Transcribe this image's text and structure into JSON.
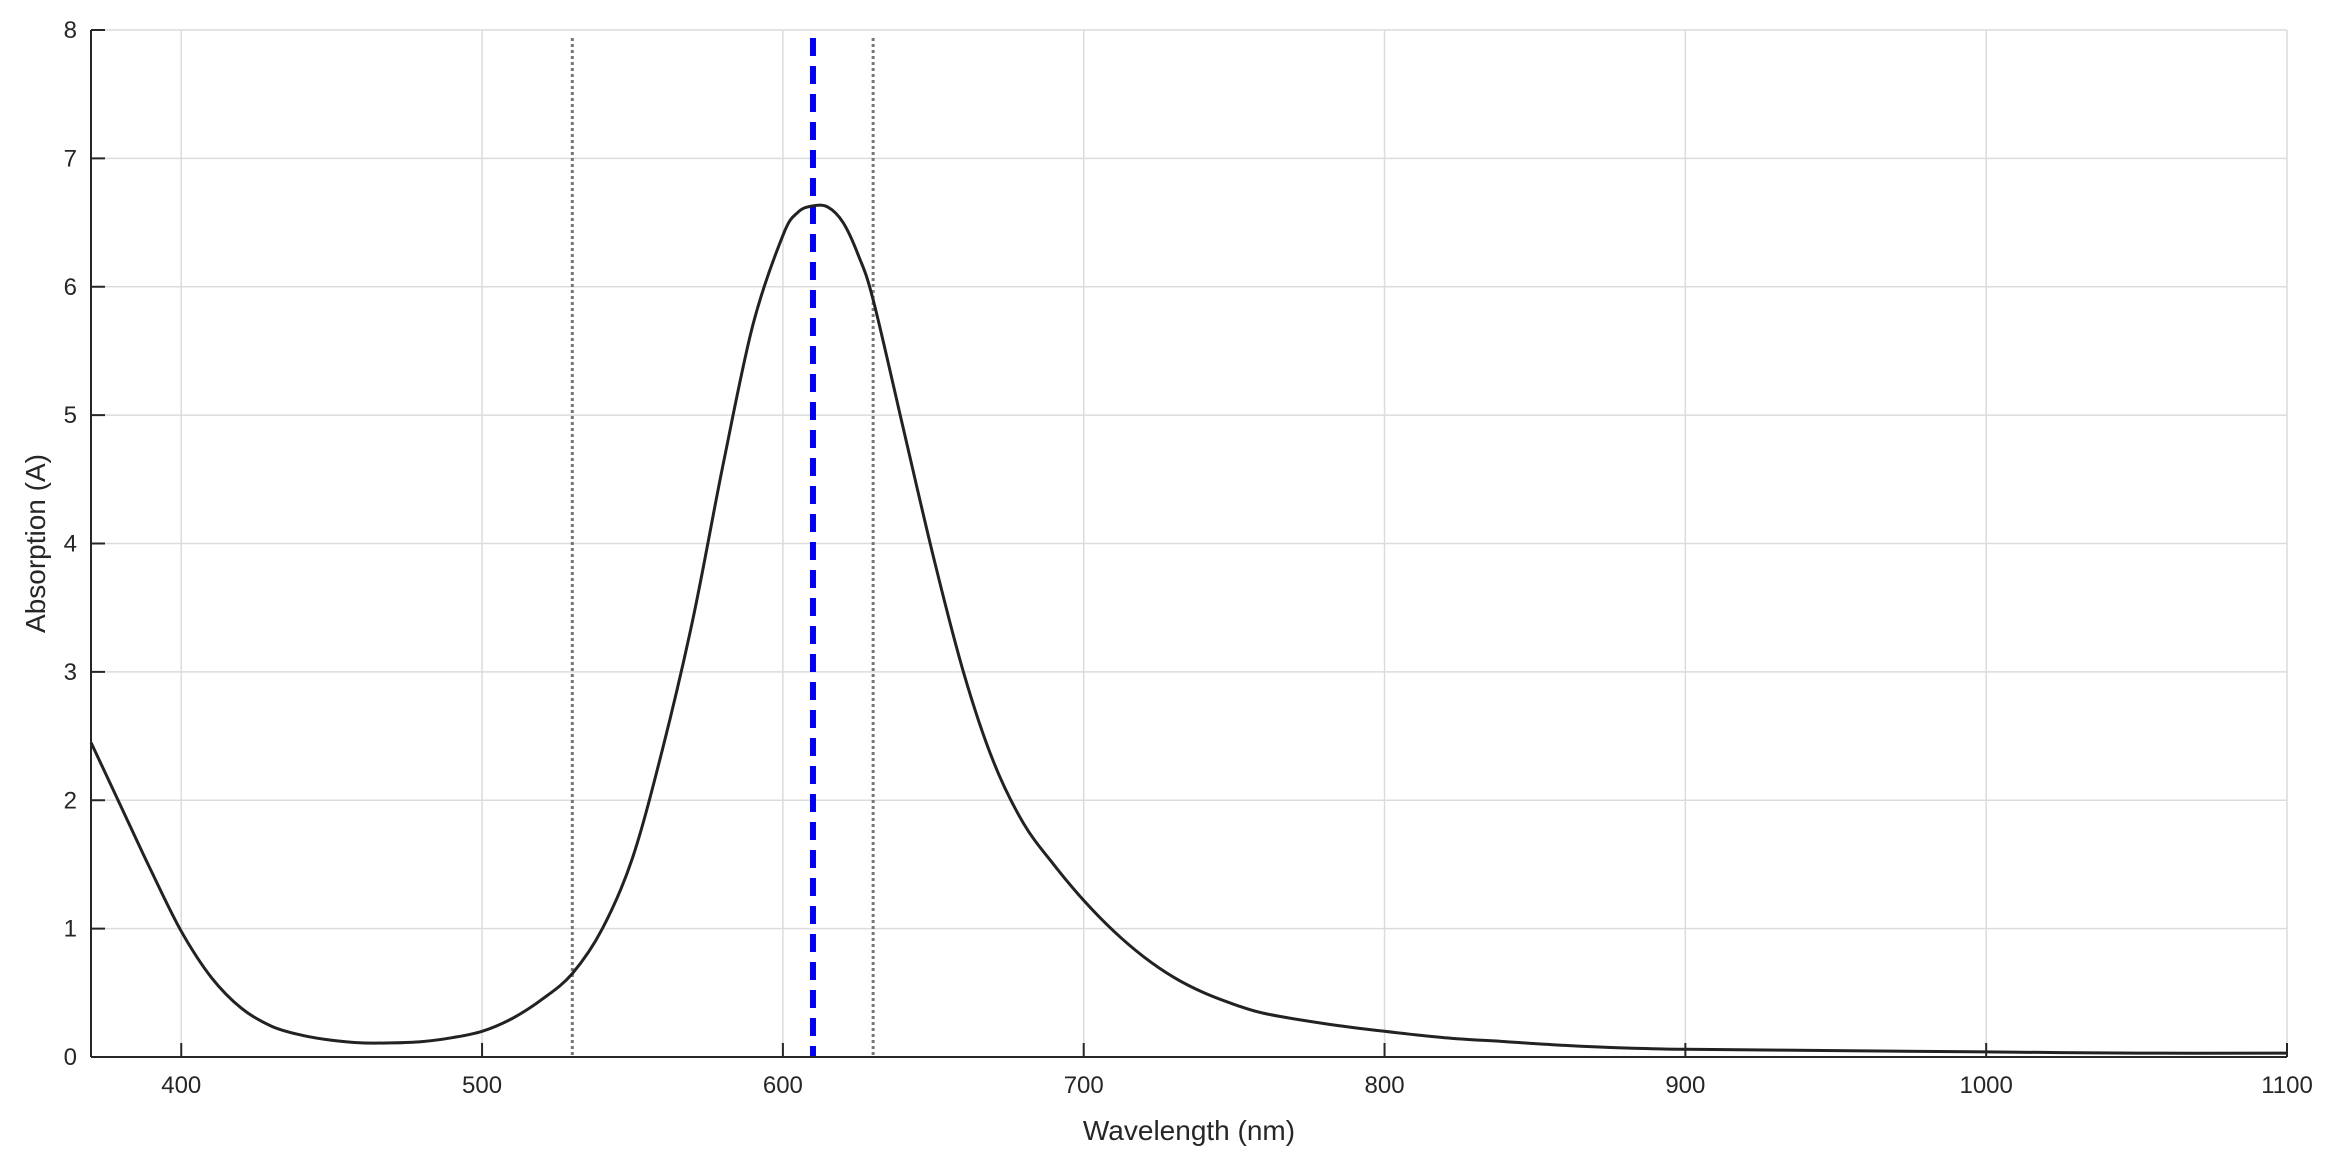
{
  "chart_data": {
    "type": "line",
    "title": "",
    "xlabel": "Wavelength (nm)",
    "ylabel": "Absorption (A)",
    "xlim": [
      370,
      1100
    ],
    "ylim": [
      0,
      8
    ],
    "xticks": [
      400,
      500,
      600,
      700,
      800,
      900,
      1000,
      1100
    ],
    "yticks": [
      0,
      1,
      2,
      3,
      4,
      5,
      6,
      7,
      8
    ],
    "grid": true,
    "legend": "none",
    "series": [
      {
        "color": "#222222",
        "x": [
          370,
          380,
          390,
          400,
          410,
          420,
          430,
          440,
          450,
          460,
          470,
          480,
          490,
          500,
          510,
          520,
          530,
          540,
          550,
          560,
          570,
          580,
          590,
          600,
          605,
          610,
          615,
          620,
          625,
          630,
          640,
          650,
          660,
          670,
          680,
          690,
          700,
          710,
          720,
          730,
          740,
          750,
          760,
          780,
          800,
          820,
          840,
          860,
          880,
          900,
          950,
          1000,
          1050,
          1100
        ],
        "y": [
          2.45,
          1.95,
          1.45,
          0.98,
          0.62,
          0.38,
          0.24,
          0.17,
          0.13,
          0.11,
          0.11,
          0.12,
          0.15,
          0.2,
          0.3,
          0.45,
          0.65,
          1.0,
          1.55,
          2.4,
          3.4,
          4.6,
          5.7,
          6.4,
          6.58,
          6.63,
          6.62,
          6.5,
          6.25,
          5.9,
          4.9,
          3.9,
          3.0,
          2.3,
          1.82,
          1.5,
          1.22,
          0.98,
          0.78,
          0.62,
          0.5,
          0.41,
          0.34,
          0.26,
          0.2,
          0.15,
          0.12,
          0.09,
          0.07,
          0.06,
          0.05,
          0.04,
          0.03,
          0.03
        ]
      }
    ],
    "annotations": [
      {
        "type": "vline",
        "x": 530,
        "style": "dotted",
        "color": "#777777"
      },
      {
        "type": "vline",
        "x": 610,
        "style": "dashed",
        "color": "#0000ee"
      },
      {
        "type": "vline",
        "x": 630,
        "style": "dotted",
        "color": "#777777"
      }
    ]
  }
}
